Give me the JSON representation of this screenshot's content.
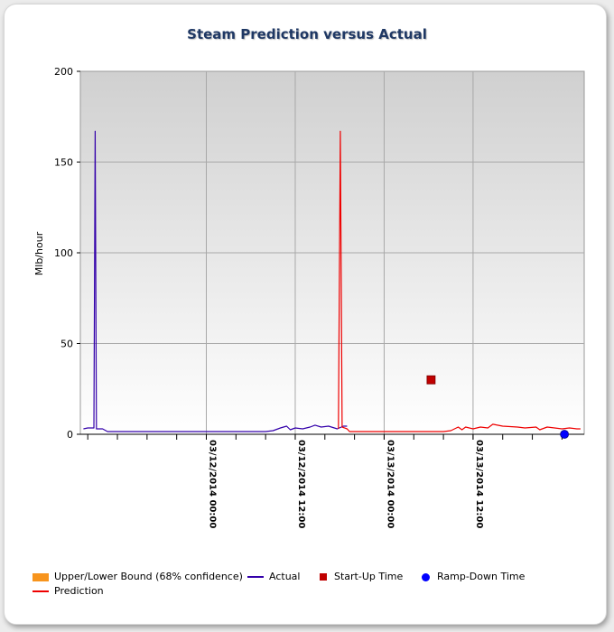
{
  "chart_data": {
    "type": "line",
    "title": "Steam Prediction versus Actual",
    "ylabel": "Mlb/hour",
    "xlabel": "",
    "ylim": [
      0,
      200
    ],
    "yticks": [
      "0",
      "50",
      "100",
      "150",
      "200"
    ],
    "xlim": [
      "03/11/2014 07:00",
      "03/14/2014 03:00"
    ],
    "xticks": [
      "03/12/2014 00:00",
      "03/12/2014 12:00",
      "03/13/2014 00:00",
      "03/13/2014 12:00"
    ],
    "grid": true,
    "legend_position": "bottom",
    "series": [
      {
        "name": "Actual",
        "color": "#3300aa",
        "points": [
          [
            "03/11/2014 07:25",
            3
          ],
          [
            "03/11/2014 08:00",
            3.5
          ],
          [
            "03/11/2014 08:50",
            3.5
          ],
          [
            "03/11/2014 09:00",
            167
          ],
          [
            "03/11/2014 09:10",
            3
          ],
          [
            "03/11/2014 10:00",
            3
          ],
          [
            "03/11/2014 10:40",
            1.5
          ],
          [
            "03/11/2014 14:00",
            1.5
          ],
          [
            "03/11/2014 18:00",
            1.5
          ],
          [
            "03/11/2014 22:00",
            1.5
          ],
          [
            "03/12/2014 02:00",
            1.5
          ],
          [
            "03/12/2014 06:00",
            1.5
          ],
          [
            "03/12/2014 08:00",
            1.5
          ],
          [
            "03/12/2014 09:00",
            2
          ],
          [
            "03/12/2014 10:00",
            3.5
          ],
          [
            "03/12/2014 10:50",
            4.5
          ],
          [
            "03/12/2014 11:20",
            2.5
          ],
          [
            "03/12/2014 12:00",
            3.5
          ],
          [
            "03/12/2014 13:00",
            3
          ],
          [
            "03/12/2014 14:00",
            4
          ],
          [
            "03/12/2014 14:40",
            5
          ],
          [
            "03/12/2014 15:30",
            4
          ],
          [
            "03/12/2014 16:30",
            4.5
          ],
          [
            "03/12/2014 17:40",
            3
          ],
          [
            "03/12/2014 18:30",
            4.5
          ],
          [
            "03/12/2014 19:00",
            4.5
          ]
        ]
      },
      {
        "name": "Prediction",
        "color": "#ee0000",
        "points": [
          [
            "03/12/2014 17:50",
            3
          ],
          [
            "03/12/2014 18:05",
            167
          ],
          [
            "03/12/2014 18:20",
            4
          ],
          [
            "03/12/2014 19:00",
            3
          ],
          [
            "03/12/2014 19:20",
            1.5
          ],
          [
            "03/12/2014 22:00",
            1.5
          ],
          [
            "03/13/2014 00:00",
            1.5
          ],
          [
            "03/13/2014 02:00",
            1.5
          ],
          [
            "03/13/2014 04:00",
            1.5
          ],
          [
            "03/13/2014 06:00",
            1.5
          ],
          [
            "03/13/2014 08:00",
            1.5
          ],
          [
            "03/13/2014 09:00",
            2
          ],
          [
            "03/13/2014 10:00",
            4
          ],
          [
            "03/13/2014 10:30",
            2.5
          ],
          [
            "03/13/2014 11:00",
            4
          ],
          [
            "03/13/2014 12:00",
            3
          ],
          [
            "03/13/2014 13:00",
            4
          ],
          [
            "03/13/2014 14:00",
            3.5
          ],
          [
            "03/13/2014 14:40",
            5.5
          ],
          [
            "03/13/2014 16:00",
            4.5
          ],
          [
            "03/13/2014 18:00",
            4
          ],
          [
            "03/13/2014 19:00",
            3.5
          ],
          [
            "03/13/2014 20:30",
            4
          ],
          [
            "03/13/2014 21:00",
            2.5
          ],
          [
            "03/13/2014 22:00",
            4
          ],
          [
            "03/13/2014 23:00",
            3.5
          ],
          [
            "03/14/2014 00:00",
            3
          ],
          [
            "03/14/2014 01:00",
            3.5
          ],
          [
            "03/14/2014 02:00",
            3
          ],
          [
            "03/14/2014 02:30",
            3
          ]
        ]
      }
    ],
    "markers": [
      {
        "name": "Start-Up Time",
        "shape": "square",
        "color": "#c00000",
        "x": "03/13/2014 06:20",
        "y": 30
      },
      {
        "name": "Ramp-Down Time",
        "shape": "circle",
        "color": "#0000ff",
        "x": "03/14/2014 00:20",
        "y": 0
      }
    ]
  },
  "legend": {
    "bounds": {
      "label": "Upper/Lower Bound (68% confidence)",
      "color": "#f7941d"
    },
    "actual": {
      "label": "Actual",
      "color": "#3300aa"
    },
    "startup": {
      "label": "Start-Up Time",
      "color": "#c00000"
    },
    "rampdown": {
      "label": "Ramp-Down Time",
      "color": "#0000ff"
    },
    "prediction": {
      "label": "Prediction",
      "color": "#ee0000"
    }
  }
}
